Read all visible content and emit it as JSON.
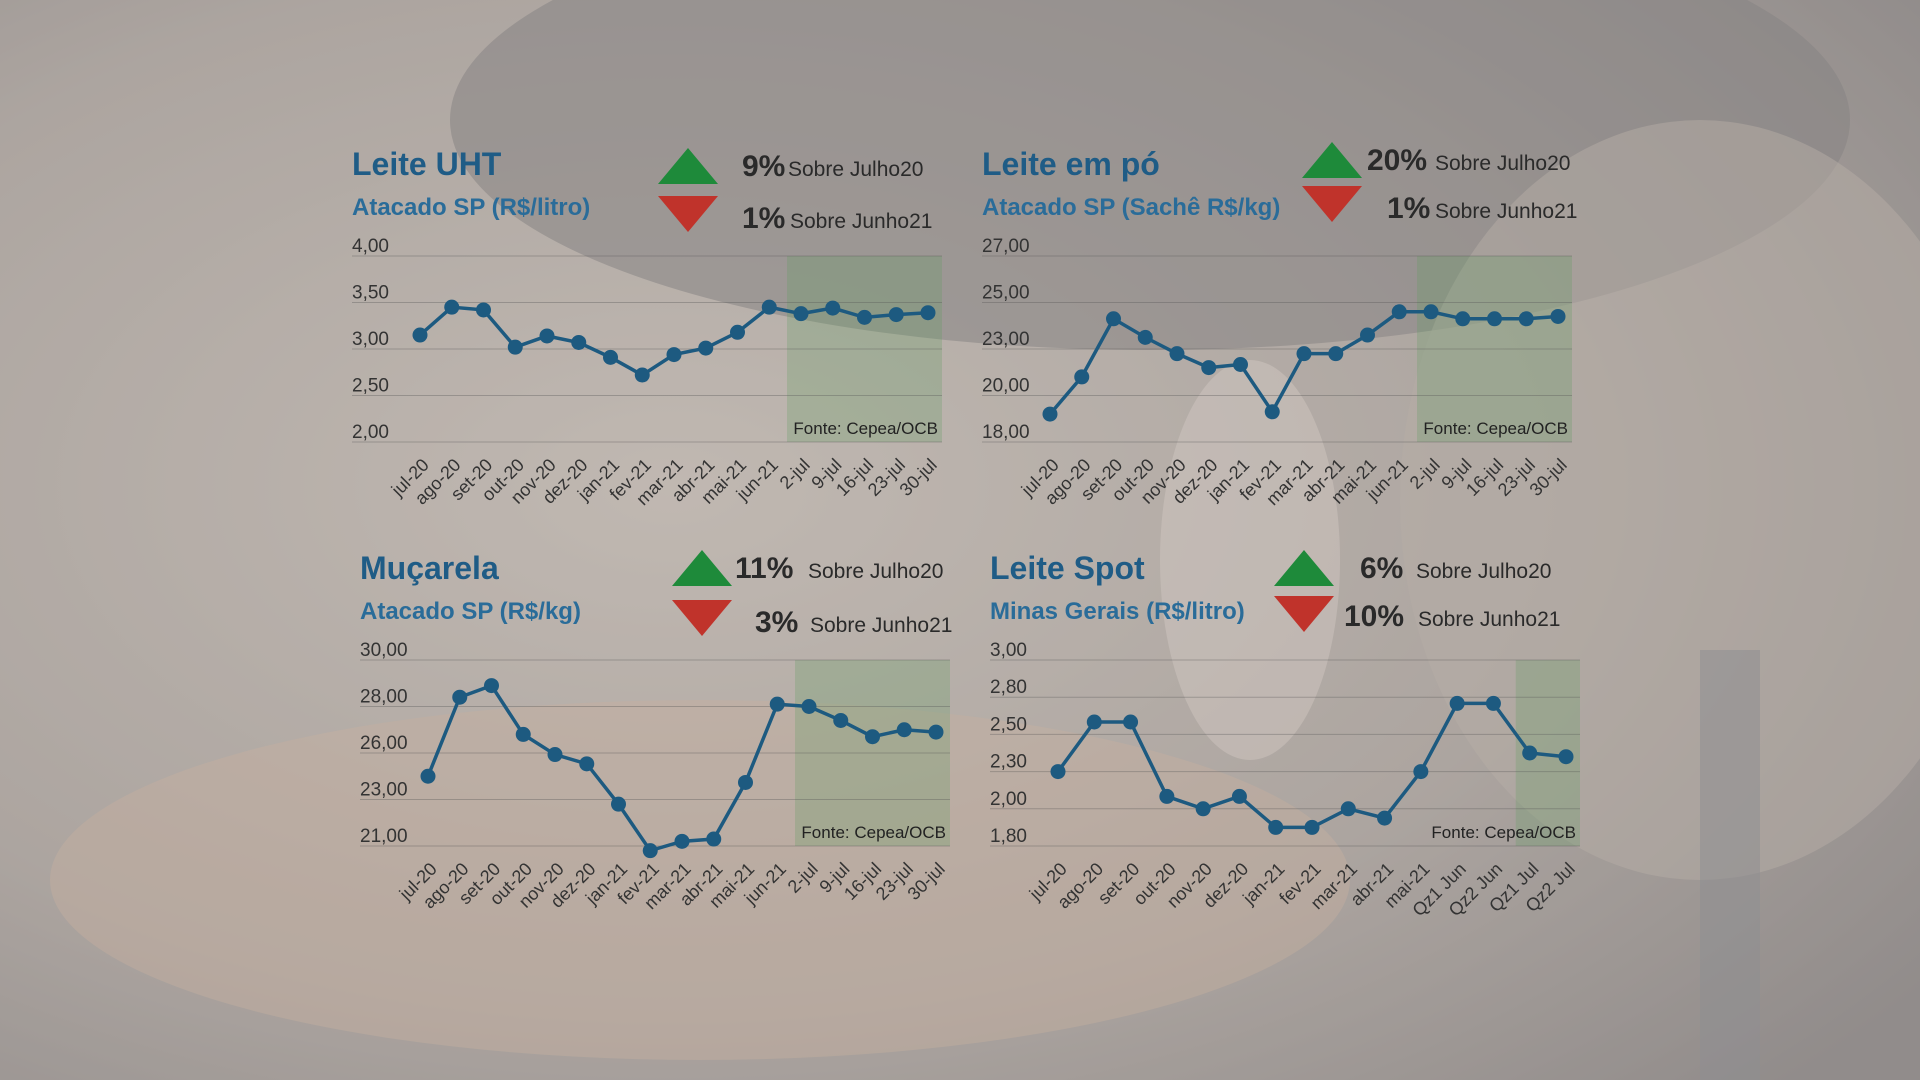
{
  "colors": {
    "line": "#1d5a80",
    "marker": "#1d5a80",
    "up": "#1e8a3a",
    "down": "#c0332b",
    "highlight": "#5a9a5a"
  },
  "chart_data": [
    {
      "type": "line",
      "title": "Leite UHT",
      "subtitle": "Atacado SP (R$/litro)",
      "up_pct": "9%",
      "up_ref": "Sobre Julho20",
      "down_pct": "1%",
      "down_ref": "Sobre Junho21",
      "y_ticks": [
        "4,00",
        "3,50",
        "3,00",
        "2,50",
        "2,00"
      ],
      "ylim": [
        2.0,
        4.0
      ],
      "categories": [
        "jul-20",
        "ago-20",
        "set-20",
        "out-20",
        "nov-20",
        "dez-20",
        "jan-21",
        "fev-21",
        "mar-21",
        "abr-21",
        "mai-21",
        "jun-21",
        "2-jul",
        "9-jul",
        "16-jul",
        "23-jul",
        "30-jul"
      ],
      "values": [
        3.15,
        3.45,
        3.42,
        3.02,
        3.14,
        3.07,
        2.91,
        2.72,
        2.94,
        3.01,
        3.18,
        3.45,
        3.38,
        3.44,
        3.34,
        3.37,
        3.39
      ],
      "highlight_from": 12,
      "source": "Fonte: Cepea/OCB"
    },
    {
      "type": "line",
      "title": "Leite em pó",
      "subtitle": "Atacado SP (Sachê R$/kg)",
      "up_pct": "20%",
      "up_ref": "Sobre Julho20",
      "down_pct": "1%",
      "down_ref": "Sobre Junho21",
      "y_ticks": [
        "27,00",
        "25,00",
        "23,00",
        "20,00",
        "18,00"
      ],
      "ylim": [
        0,
        4
      ],
      "tick_scale": [
        18.0,
        20.0,
        23.0,
        25.0,
        27.0
      ],
      "categories": [
        "jul-20",
        "ago-20",
        "set-20",
        "out-20",
        "nov-20",
        "dez-20",
        "jan-21",
        "fev-21",
        "mar-21",
        "abr-21",
        "mai-21",
        "jun-21",
        "2-jul",
        "9-jul",
        "16-jul",
        "23-jul",
        "30-jul"
      ],
      "values": [
        19.2,
        21.2,
        24.3,
        23.5,
        22.7,
        21.8,
        22.0,
        19.3,
        22.7,
        22.7,
        23.6,
        24.6,
        24.6,
        24.3,
        24.3,
        24.3,
        24.4
      ],
      "highlight_from": 12,
      "source": "Fonte: Cepea/OCB"
    },
    {
      "type": "line",
      "title": "Muçarela",
      "subtitle": "Atacado SP (R$/kg)",
      "up_pct": "11%",
      "up_ref": "Sobre Julho20",
      "down_pct": "3%",
      "down_ref": "Sobre Junho21",
      "y_ticks": [
        "30,00",
        "28,00",
        "26,00",
        "23,00",
        "21,00"
      ],
      "ylim": [
        0,
        4
      ],
      "tick_scale": [
        21.0,
        23.0,
        26.0,
        28.0,
        30.0
      ],
      "categories": [
        "jul-20",
        "ago-20",
        "set-20",
        "out-20",
        "nov-20",
        "dez-20",
        "jan-21",
        "fev-21",
        "mar-21",
        "abr-21",
        "mai-21",
        "jun-21",
        "2-jul",
        "9-jul",
        "16-jul",
        "23-jul",
        "30-jul"
      ],
      "values": [
        24.5,
        28.4,
        28.9,
        26.8,
        25.9,
        25.3,
        22.8,
        20.8,
        21.2,
        21.3,
        24.1,
        28.1,
        28.0,
        27.4,
        26.7,
        27.0,
        26.9
      ],
      "highlight_from": 12,
      "source": "Fonte: Cepea/OCB"
    },
    {
      "type": "line",
      "title": "Leite Spot",
      "subtitle": "Minas Gerais (R$/litro)",
      "up_pct": "6%",
      "up_ref": "Sobre Julho20",
      "down_pct": "10%",
      "down_ref": "Sobre Junho21",
      "y_ticks": [
        "3,00",
        "2,80",
        "2,50",
        "2,30",
        "2,00",
        "1,80"
      ],
      "ylim": [
        0,
        5
      ],
      "tick_scale": [
        1.8,
        2.0,
        2.3,
        2.5,
        2.8,
        3.0
      ],
      "categories": [
        "jul-20",
        "ago-20",
        "set-20",
        "out-20",
        "nov-20",
        "dez-20",
        "jan-21",
        "fev-21",
        "mar-21",
        "abr-21",
        "mai-21",
        "Qz1 Jun",
        "Qz2 Jun",
        "Qz1 Jul",
        "Qz2 Jul"
      ],
      "values": [
        2.3,
        2.6,
        2.6,
        2.1,
        2.0,
        2.1,
        1.9,
        1.9,
        2.0,
        1.95,
        2.3,
        2.75,
        2.75,
        2.4,
        2.38
      ],
      "highlight_from": 13,
      "source": "Fonte: Cepea/OCB"
    }
  ]
}
